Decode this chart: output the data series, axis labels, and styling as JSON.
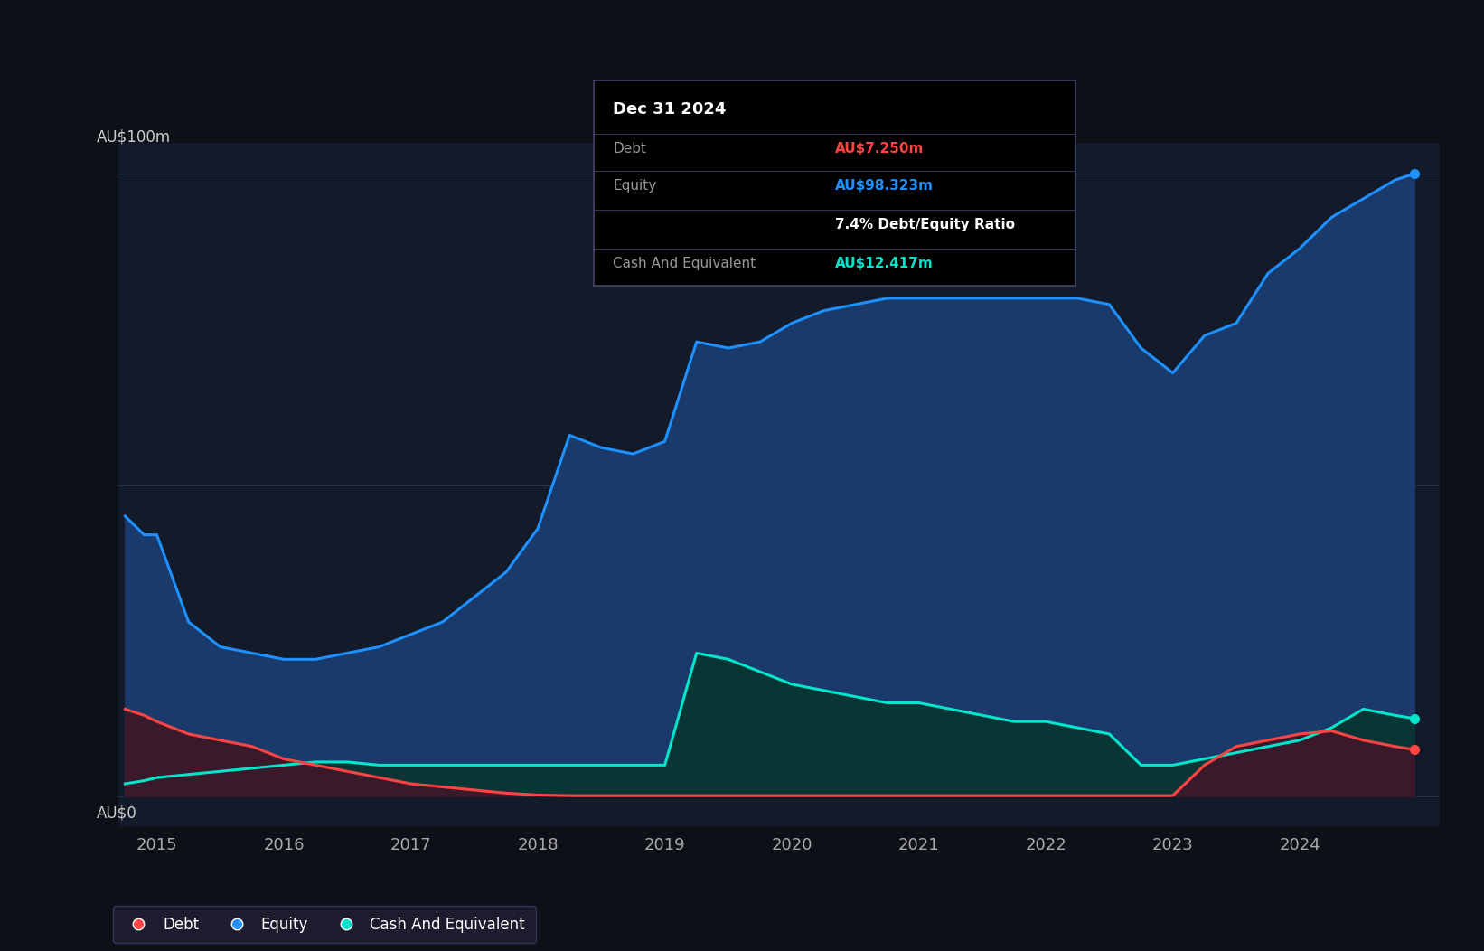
{
  "background_color": "#0d1117",
  "plot_bg_color": "#131b2a",
  "grid_color": "#2a3550",
  "equity_color": "#1e90ff",
  "equity_fill": "#1a3a6b",
  "debt_color": "#ff4444",
  "debt_fill": "#3a1a2a",
  "cash_color": "#00e5cc",
  "cash_fill": "#0a3535",
  "xlim_start": 2014.7,
  "xlim_end": 2025.1,
  "ylim_min": -5,
  "ylim_max": 105,
  "equity_data": [
    [
      2014.75,
      45
    ],
    [
      2014.9,
      42
    ],
    [
      2015.0,
      42
    ],
    [
      2015.25,
      28
    ],
    [
      2015.5,
      24
    ],
    [
      2015.75,
      23
    ],
    [
      2016.0,
      22
    ],
    [
      2016.25,
      22
    ],
    [
      2016.5,
      23
    ],
    [
      2016.75,
      24
    ],
    [
      2017.0,
      26
    ],
    [
      2017.25,
      28
    ],
    [
      2017.5,
      32
    ],
    [
      2017.75,
      36
    ],
    [
      2018.0,
      43
    ],
    [
      2018.25,
      58
    ],
    [
      2018.5,
      56
    ],
    [
      2018.75,
      55
    ],
    [
      2019.0,
      57
    ],
    [
      2019.25,
      73
    ],
    [
      2019.5,
      72
    ],
    [
      2019.75,
      73
    ],
    [
      2020.0,
      76
    ],
    [
      2020.25,
      78
    ],
    [
      2020.5,
      79
    ],
    [
      2020.75,
      80
    ],
    [
      2021.0,
      80
    ],
    [
      2021.25,
      80
    ],
    [
      2021.5,
      80
    ],
    [
      2021.75,
      80
    ],
    [
      2022.0,
      80
    ],
    [
      2022.25,
      80
    ],
    [
      2022.5,
      79
    ],
    [
      2022.75,
      72
    ],
    [
      2023.0,
      68
    ],
    [
      2023.25,
      74
    ],
    [
      2023.5,
      76
    ],
    [
      2023.75,
      84
    ],
    [
      2024.0,
      88
    ],
    [
      2024.25,
      93
    ],
    [
      2024.5,
      96
    ],
    [
      2024.75,
      99
    ],
    [
      2024.9,
      100
    ]
  ],
  "debt_data": [
    [
      2014.75,
      14
    ],
    [
      2014.9,
      13
    ],
    [
      2015.0,
      12
    ],
    [
      2015.25,
      10
    ],
    [
      2015.5,
      9
    ],
    [
      2015.75,
      8
    ],
    [
      2016.0,
      6
    ],
    [
      2016.25,
      5
    ],
    [
      2016.5,
      4
    ],
    [
      2016.75,
      3
    ],
    [
      2017.0,
      2
    ],
    [
      2017.25,
      1.5
    ],
    [
      2017.5,
      1
    ],
    [
      2017.75,
      0.5
    ],
    [
      2018.0,
      0.2
    ],
    [
      2018.25,
      0.1
    ],
    [
      2018.5,
      0.1
    ],
    [
      2018.75,
      0.1
    ],
    [
      2019.0,
      0.1
    ],
    [
      2019.25,
      0.1
    ],
    [
      2019.5,
      0.1
    ],
    [
      2019.75,
      0.1
    ],
    [
      2020.0,
      0.1
    ],
    [
      2020.25,
      0.1
    ],
    [
      2020.5,
      0.1
    ],
    [
      2020.75,
      0.1
    ],
    [
      2021.0,
      0.1
    ],
    [
      2021.25,
      0.1
    ],
    [
      2021.5,
      0.1
    ],
    [
      2021.75,
      0.1
    ],
    [
      2022.0,
      0.1
    ],
    [
      2022.25,
      0.1
    ],
    [
      2022.5,
      0.1
    ],
    [
      2022.75,
      0.1
    ],
    [
      2023.0,
      0.1
    ],
    [
      2023.25,
      5
    ],
    [
      2023.5,
      8
    ],
    [
      2023.75,
      9
    ],
    [
      2024.0,
      10
    ],
    [
      2024.25,
      10.5
    ],
    [
      2024.5,
      9
    ],
    [
      2024.75,
      8
    ],
    [
      2024.9,
      7.5
    ]
  ],
  "cash_data": [
    [
      2014.75,
      2
    ],
    [
      2014.9,
      2.5
    ],
    [
      2015.0,
      3
    ],
    [
      2015.25,
      3.5
    ],
    [
      2015.5,
      4
    ],
    [
      2015.75,
      4.5
    ],
    [
      2016.0,
      5
    ],
    [
      2016.25,
      5.5
    ],
    [
      2016.5,
      5.5
    ],
    [
      2016.75,
      5
    ],
    [
      2017.0,
      5
    ],
    [
      2017.25,
      5
    ],
    [
      2017.5,
      5
    ],
    [
      2017.75,
      5
    ],
    [
      2018.0,
      5
    ],
    [
      2018.25,
      5
    ],
    [
      2018.5,
      5
    ],
    [
      2018.75,
      5
    ],
    [
      2019.0,
      5
    ],
    [
      2019.25,
      23
    ],
    [
      2019.5,
      22
    ],
    [
      2019.75,
      20
    ],
    [
      2020.0,
      18
    ],
    [
      2020.25,
      17
    ],
    [
      2020.5,
      16
    ],
    [
      2020.75,
      15
    ],
    [
      2021.0,
      15
    ],
    [
      2021.25,
      14
    ],
    [
      2021.5,
      13
    ],
    [
      2021.75,
      12
    ],
    [
      2022.0,
      12
    ],
    [
      2022.25,
      11
    ],
    [
      2022.5,
      10
    ],
    [
      2022.75,
      5
    ],
    [
      2023.0,
      5
    ],
    [
      2023.25,
      6
    ],
    [
      2023.5,
      7
    ],
    [
      2023.75,
      8
    ],
    [
      2024.0,
      9
    ],
    [
      2024.25,
      11
    ],
    [
      2024.5,
      14
    ],
    [
      2024.75,
      13
    ],
    [
      2024.9,
      12.5
    ]
  ],
  "tooltip": {
    "date": "Dec 31 2024",
    "debt_label": "Debt",
    "debt_value": "AU$7.250m",
    "equity_label": "Equity",
    "equity_value": "AU$98.323m",
    "ratio_text": "7.4% Debt/Equity Ratio",
    "cash_label": "Cash And Equivalent",
    "cash_value": "AU$12.417m"
  },
  "xticks": [
    2015,
    2016,
    2017,
    2018,
    2019,
    2020,
    2021,
    2022,
    2023,
    2024
  ],
  "ytick_100_label": "AU$100m",
  "ytick_0_label": "AU$0"
}
